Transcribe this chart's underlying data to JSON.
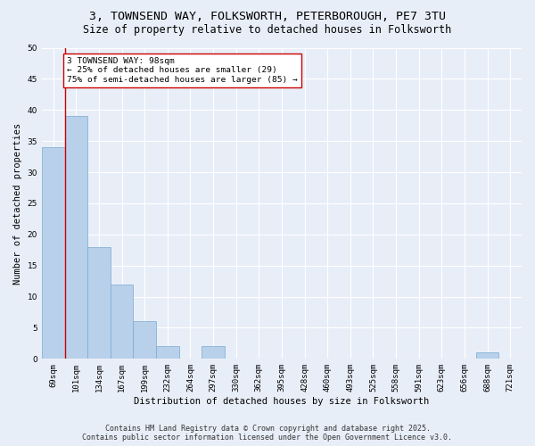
{
  "title1": "3, TOWNSEND WAY, FOLKSWORTH, PETERBOROUGH, PE7 3TU",
  "title2": "Size of property relative to detached houses in Folksworth",
  "xlabel": "Distribution of detached houses by size in Folksworth",
  "ylabel": "Number of detached properties",
  "categories": [
    "69sqm",
    "101sqm",
    "134sqm",
    "167sqm",
    "199sqm",
    "232sqm",
    "264sqm",
    "297sqm",
    "330sqm",
    "362sqm",
    "395sqm",
    "428sqm",
    "460sqm",
    "493sqm",
    "525sqm",
    "558sqm",
    "591sqm",
    "623sqm",
    "656sqm",
    "688sqm",
    "721sqm"
  ],
  "values": [
    34,
    39,
    18,
    12,
    6,
    2,
    0,
    2,
    0,
    0,
    0,
    0,
    0,
    0,
    0,
    0,
    0,
    0,
    0,
    1,
    0
  ],
  "bar_color": "#b8d0ea",
  "bar_edge_color": "#7aaad0",
  "vline_color": "#cc0000",
  "annotation_text": "3 TOWNSEND WAY: 98sqm\n← 25% of detached houses are smaller (29)\n75% of semi-detached houses are larger (85) →",
  "annotation_box_color": "#ffffff",
  "annotation_box_edge": "#cc0000",
  "ylim": [
    0,
    50
  ],
  "yticks": [
    0,
    5,
    10,
    15,
    20,
    25,
    30,
    35,
    40,
    45,
    50
  ],
  "background_color": "#e8eef8",
  "grid_color": "#ffffff",
  "footer": "Contains HM Land Registry data © Crown copyright and database right 2025.\nContains public sector information licensed under the Open Government Licence v3.0.",
  "title_fontsize": 9.5,
  "subtitle_fontsize": 8.5,
  "axis_label_fontsize": 7.5,
  "tick_fontsize": 6.5,
  "annotation_fontsize": 6.8,
  "footer_fontsize": 6.0
}
